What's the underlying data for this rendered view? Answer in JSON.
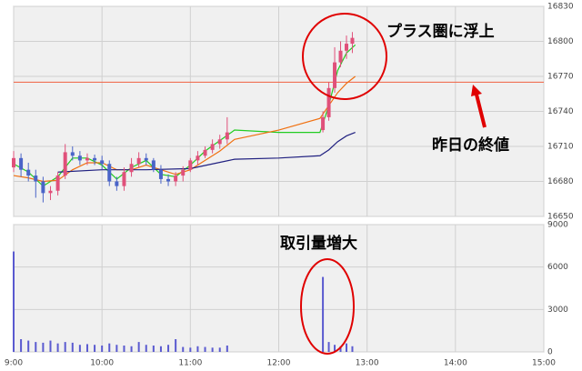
{
  "chart_data": [
    {
      "type": "candlestick",
      "xlim": [
        0,
        360
      ],
      "xticks": [
        {
          "value": 0,
          "label": "9:00"
        },
        {
          "value": 60,
          "label": "10:00"
        },
        {
          "value": 120,
          "label": "11:00"
        },
        {
          "value": 180,
          "label": "12:00"
        },
        {
          "value": 240,
          "label": "13:00"
        },
        {
          "value": 300,
          "label": "14:00"
        },
        {
          "value": 360,
          "label": "15:00"
        }
      ],
      "ylim": [
        16650,
        16830
      ],
      "yticks": [
        16650,
        16680,
        16710,
        16740,
        16770,
        16800,
        16830
      ],
      "grid": true,
      "up_color": "#e0507a",
      "down_color": "#4a64c8",
      "x": [
        0,
        5,
        10,
        15,
        20,
        25,
        30,
        35,
        40,
        45,
        50,
        55,
        60,
        65,
        70,
        75,
        80,
        85,
        90,
        95,
        100,
        105,
        110,
        115,
        120,
        125,
        130,
        135,
        140,
        145,
        210,
        214,
        218,
        222,
        226,
        230
      ],
      "open": [
        16692,
        16700,
        16690,
        16685,
        16680,
        16670,
        16672,
        16685,
        16705,
        16702,
        16698,
        16700,
        16698,
        16695,
        16680,
        16676,
        16688,
        16695,
        16700,
        16698,
        16690,
        16682,
        16680,
        16685,
        16690,
        16698,
        16702,
        16707,
        16712,
        16716,
        16724,
        16735,
        16760,
        16782,
        16792,
        16798
      ],
      "high": [
        16706,
        16704,
        16696,
        16690,
        16684,
        16676,
        16688,
        16712,
        16710,
        16706,
        16704,
        16703,
        16702,
        16698,
        16684,
        16692,
        16700,
        16705,
        16704,
        16700,
        16694,
        16686,
        16688,
        16693,
        16700,
        16706,
        16710,
        16716,
        16720,
        16735,
        16740,
        16765,
        16795,
        16800,
        16805,
        16808
      ],
      "low": [
        16688,
        16684,
        16680,
        16666,
        16662,
        16664,
        16668,
        16682,
        16698,
        16694,
        16694,
        16694,
        16690,
        16676,
        16672,
        16672,
        16684,
        16692,
        16694,
        16688,
        16678,
        16676,
        16676,
        16680,
        16688,
        16694,
        16700,
        16704,
        16708,
        16712,
        16722,
        16732,
        16756,
        16778,
        16785,
        16790
      ],
      "close": [
        16700,
        16690,
        16685,
        16680,
        16670,
        16672,
        16685,
        16705,
        16702,
        16698,
        16700,
        16698,
        16695,
        16680,
        16676,
        16688,
        16695,
        16700,
        16698,
        16690,
        16682,
        16680,
        16685,
        16690,
        16698,
        16702,
        16707,
        16712,
        16716,
        16722,
        16735,
        16760,
        16782,
        16792,
        16798,
        16803
      ],
      "series": [
        {
          "color": "#22cc22",
          "x": [
            0,
            10,
            20,
            30,
            40,
            50,
            60,
            70,
            80,
            90,
            100,
            110,
            120,
            130,
            140,
            150,
            180,
            208,
            214,
            220,
            226,
            232
          ],
          "values": [
            16695,
            16688,
            16676,
            16684,
            16700,
            16700,
            16694,
            16682,
            16692,
            16698,
            16686,
            16684,
            16694,
            16706,
            16715,
            16724,
            16722,
            16722,
            16745,
            16775,
            16790,
            16797
          ]
        },
        {
          "color": "#f07010",
          "x": [
            0,
            10,
            20,
            30,
            40,
            50,
            60,
            70,
            80,
            90,
            100,
            110,
            120,
            130,
            140,
            150,
            180,
            208,
            214,
            220,
            226,
            232
          ],
          "values": [
            16685,
            16683,
            16680,
            16681,
            16690,
            16696,
            16696,
            16690,
            16690,
            16694,
            16690,
            16686,
            16690,
            16698,
            16706,
            16716,
            16724,
            16734,
            16745,
            16756,
            16764,
            16770
          ]
        },
        {
          "color": "#202080",
          "x": [
            30,
            60,
            90,
            120,
            135,
            150,
            180,
            208,
            214,
            220,
            226,
            232
          ],
          "values": [
            16688,
            16690,
            16690,
            16691,
            16695,
            16699,
            16700,
            16702,
            16707,
            16714,
            16719,
            16722
          ]
        }
      ],
      "reference_line": 16765,
      "reference_color": "#f06040",
      "annotations": [
        "プラス圏に浮上",
        "昨日の終値",
        "取引量増大"
      ]
    },
    {
      "type": "bar",
      "xlim": [
        0,
        360
      ],
      "xticks": [
        {
          "value": 0,
          "label": "9:00"
        },
        {
          "value": 60,
          "label": "10:00"
        },
        {
          "value": 120,
          "label": "11:00"
        },
        {
          "value": 180,
          "label": "12:00"
        },
        {
          "value": 240,
          "label": "13:00"
        },
        {
          "value": 300,
          "label": "14:00"
        },
        {
          "value": 360,
          "label": "15:00"
        }
      ],
      "ylim": [
        0,
        9000
      ],
      "yticks": [
        0,
        3000,
        6000,
        9000
      ],
      "grid": true,
      "color": "#5a5ad0",
      "x": [
        0,
        5,
        10,
        15,
        20,
        25,
        30,
        35,
        40,
        45,
        50,
        55,
        60,
        65,
        70,
        75,
        80,
        85,
        90,
        95,
        100,
        105,
        110,
        115,
        120,
        125,
        130,
        135,
        140,
        145,
        210,
        214,
        218,
        222,
        226,
        230
      ],
      "values": [
        7100,
        900,
        800,
        700,
        650,
        800,
        600,
        700,
        650,
        500,
        550,
        500,
        450,
        600,
        500,
        450,
        400,
        700,
        500,
        450,
        400,
        500,
        900,
        350,
        300,
        400,
        350,
        300,
        300,
        450,
        5300,
        700,
        500,
        400,
        600,
        400
      ]
    }
  ]
}
